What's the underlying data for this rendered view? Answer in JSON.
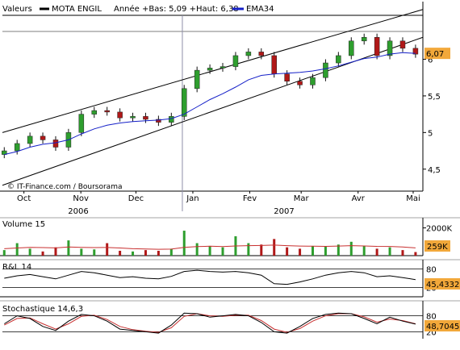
{
  "header": {
    "valeurs": "Valeurs",
    "symbol": "MOTA ENGIL",
    "range_text": "Année +Bas: 5,09 +Haut: 6,38",
    "ema_label": "EMA34"
  },
  "colors": {
    "up": "#2e9e2e",
    "down": "#b01818",
    "ema": "#1520c8",
    "volume_ma": "#c83030",
    "badge": "#f2a83a",
    "badge_text": "#000000",
    "frame": "#000000",
    "rsi_line": "#000000",
    "stoch_k": "#000000",
    "stoch_d": "#c83030"
  },
  "chart_data": [
    {
      "type": "candlestick",
      "title": "MOTA ENGIL",
      "yticks": [
        "4,5",
        "5",
        "5,5",
        "6"
      ],
      "ylim": [
        4.2,
        6.6
      ],
      "last_value": "6,07",
      "xticks": [
        "Oct",
        "Nov",
        "Dec",
        "Jan",
        "Fev",
        "Mar",
        "Avr",
        "Mai"
      ],
      "years": [
        "2006",
        "2007"
      ],
      "watermark": "© IT-Finance.com / Boursorama",
      "dates": [
        "2006-09-26",
        "2006-10-03",
        "2006-10-10",
        "2006-10-17",
        "2006-10-24",
        "2006-10-31",
        "2006-11-07",
        "2006-11-14",
        "2006-11-21",
        "2006-11-28",
        "2006-12-05",
        "2006-12-12",
        "2006-12-19",
        "2006-12-26",
        "2007-01-02",
        "2007-01-09",
        "2007-01-16",
        "2007-01-23",
        "2007-01-30",
        "2007-02-06",
        "2007-02-13",
        "2007-02-20",
        "2007-02-27",
        "2007-03-06",
        "2007-03-13",
        "2007-03-20",
        "2007-03-27",
        "2007-04-03",
        "2007-04-10",
        "2007-04-17",
        "2007-04-24",
        "2007-05-01",
        "2007-05-08"
      ],
      "close": [
        4.75,
        4.85,
        4.95,
        4.9,
        4.8,
        5.0,
        5.25,
        5.3,
        5.28,
        5.2,
        5.22,
        5.18,
        5.14,
        5.22,
        5.6,
        5.85,
        5.88,
        5.9,
        6.05,
        6.1,
        6.05,
        5.8,
        5.7,
        5.65,
        5.75,
        5.95,
        6.05,
        6.25,
        6.3,
        6.05,
        6.25,
        6.15,
        6.07
      ],
      "ema34": [
        4.7,
        4.74,
        4.8,
        4.84,
        4.86,
        4.9,
        4.98,
        5.05,
        5.1,
        5.13,
        5.15,
        5.16,
        5.17,
        5.19,
        5.25,
        5.35,
        5.45,
        5.53,
        5.62,
        5.72,
        5.78,
        5.8,
        5.81,
        5.82,
        5.84,
        5.87,
        5.91,
        5.96,
        6.01,
        6.03,
        6.07,
        6.09,
        6.08
      ],
      "channel": {
        "upper_start": [
          "2006-09-25",
          5.0
        ],
        "upper_end": [
          "2007-05-12",
          6.68
        ],
        "lower_start": [
          "2006-09-25",
          4.28
        ],
        "lower_end": [
          "2007-05-12",
          6.3
        ]
      },
      "hline": 6.38
    },
    {
      "type": "bar",
      "title": "Volume 15",
      "ytick": "2000K",
      "last_value": "259K",
      "values": [
        400,
        900,
        500,
        300,
        600,
        1100,
        500,
        450,
        900,
        350,
        300,
        400,
        350,
        500,
        1800,
        900,
        700,
        600,
        1400,
        900,
        800,
        1200,
        600,
        500,
        700,
        650,
        800,
        1000,
        700,
        500,
        600,
        400,
        259
      ],
      "ma": [
        500,
        550,
        600,
        580,
        560,
        620,
        600,
        580,
        590,
        550,
        500,
        480,
        460,
        470,
        600,
        650,
        680,
        650,
        700,
        720,
        730,
        760,
        720,
        690,
        680,
        670,
        690,
        720,
        700,
        670,
        660,
        620,
        560
      ]
    },
    {
      "type": "line",
      "title": "R&L 14",
      "yticks": [
        "80",
        "20"
      ],
      "last_value": "45,4332",
      "values": [
        50,
        58,
        62,
        55,
        48,
        60,
        72,
        68,
        60,
        52,
        55,
        50,
        48,
        56,
        72,
        76,
        72,
        70,
        72,
        68,
        60,
        32,
        30,
        38,
        48,
        60,
        68,
        72,
        68,
        55,
        58,
        52,
        45.43
      ]
    },
    {
      "type": "line",
      "title": "Stochastique 14,6,3",
      "yticks": [
        "80",
        "20"
      ],
      "last_value": "48,7045",
      "k": [
        50,
        80,
        70,
        40,
        25,
        60,
        85,
        80,
        60,
        30,
        25,
        20,
        15,
        45,
        90,
        88,
        75,
        80,
        85,
        80,
        55,
        20,
        15,
        40,
        70,
        85,
        90,
        88,
        70,
        50,
        75,
        60,
        48.7
      ],
      "d": [
        45,
        70,
        72,
        50,
        30,
        50,
        78,
        82,
        66,
        40,
        28,
        22,
        18,
        35,
        78,
        88,
        80,
        78,
        82,
        82,
        62,
        30,
        18,
        32,
        60,
        80,
        88,
        88,
        76,
        56,
        68,
        62,
        50
      ]
    }
  ]
}
